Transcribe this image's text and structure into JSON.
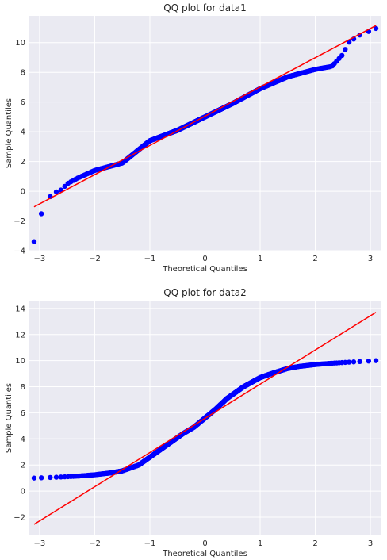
{
  "chart_data": [
    {
      "type": "scatter",
      "title": "QQ plot for data1",
      "xlabel": "Theoretical Quantiles",
      "ylabel": "Sample Quantiles",
      "xlim": [
        -3.2,
        3.2
      ],
      "ylim": [
        -4.0,
        11.8
      ],
      "xticks": [
        -3,
        -2,
        -1,
        0,
        1,
        2,
        3
      ],
      "yticks": [
        -4,
        -2,
        0,
        2,
        4,
        6,
        8,
        10
      ],
      "grid": true,
      "point_color": "#0000ff",
      "line_color": "#ff0000",
      "reference_line": {
        "x": [
          -3.1,
          3.1
        ],
        "y": [
          -1.05,
          11.15
        ]
      },
      "quantile_knots": {
        "x": [
          -3.1,
          -2.9,
          -2.8,
          -2.7,
          -2.6,
          -2.5,
          -2.3,
          -2.0,
          -1.5,
          -1.0,
          -0.5,
          0.0,
          0.5,
          1.0,
          1.5,
          2.0,
          2.3,
          2.5,
          2.6,
          2.8,
          3.1
        ],
        "y": [
          -3.4,
          -0.55,
          -0.35,
          -0.05,
          0.1,
          0.5,
          0.9,
          1.4,
          1.9,
          3.4,
          4.1,
          5.0,
          5.9,
          6.9,
          7.7,
          8.2,
          8.4,
          9.2,
          10.0,
          10.5,
          10.95
        ]
      },
      "n_points": 1000
    },
    {
      "type": "scatter",
      "title": "QQ plot for data2",
      "xlabel": "Theoretical Quantiles",
      "ylabel": "Sample Quantiles",
      "xlim": [
        -3.2,
        3.2
      ],
      "ylim": [
        -3.4,
        14.6
      ],
      "xticks": [
        -3,
        -2,
        -1,
        0,
        1,
        2,
        3
      ],
      "yticks": [
        -2,
        0,
        2,
        4,
        6,
        8,
        10,
        12,
        14
      ],
      "grid": true,
      "point_color": "#0000ff",
      "line_color": "#ff0000",
      "reference_line": {
        "x": [
          -3.1,
          3.1
        ],
        "y": [
          -2.55,
          13.7
        ]
      },
      "quantile_knots": {
        "x": [
          -3.1,
          -2.9,
          -2.6,
          -2.3,
          -2.0,
          -1.7,
          -1.5,
          -1.2,
          -1.0,
          -0.7,
          -0.4,
          -0.2,
          0.0,
          0.2,
          0.4,
          0.7,
          1.0,
          1.2,
          1.5,
          1.7,
          2.0,
          2.3,
          2.6,
          2.9,
          3.1
        ],
        "y": [
          1.0,
          1.03,
          1.08,
          1.15,
          1.25,
          1.4,
          1.55,
          2.0,
          2.6,
          3.5,
          4.4,
          4.9,
          5.6,
          6.3,
          7.1,
          8.0,
          8.7,
          9.0,
          9.4,
          9.55,
          9.7,
          9.8,
          9.88,
          9.95,
          10.0
        ]
      },
      "n_points": 1000
    }
  ]
}
